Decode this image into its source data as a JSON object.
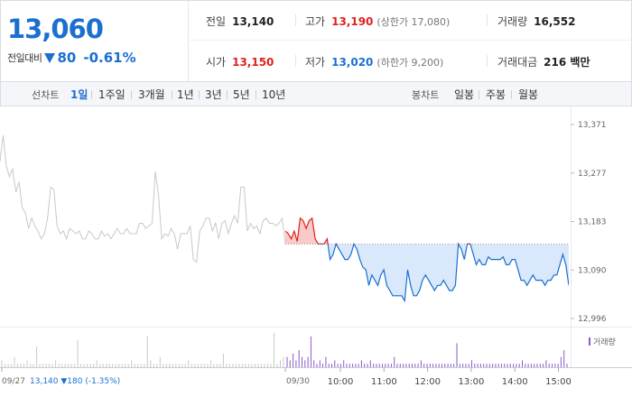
{
  "quote": {
    "price": "13,060",
    "change_label": "전일대비",
    "change_value": "80",
    "change_pct": "-0.61%"
  },
  "stats": {
    "prev_close": {
      "label": "전일",
      "value": "13,140"
    },
    "high": {
      "label": "고가",
      "value": "13,190",
      "limit_label": "(상한가 17,080)"
    },
    "volume": {
      "label": "거래량",
      "value": "16,552"
    },
    "open": {
      "label": "시가",
      "value": "13,150"
    },
    "low": {
      "label": "저가",
      "value": "13,020",
      "limit_label": "(하한가 9,200)"
    },
    "trade_value": {
      "label": "거래대금",
      "value": "216 백만"
    }
  },
  "line_tabs": {
    "label": "선차트",
    "items": [
      "1일",
      "1주일",
      "3개월",
      "1년",
      "3년",
      "5년",
      "10년"
    ],
    "active": "1일"
  },
  "candle_tabs": {
    "label": "봉차트",
    "items": [
      "일봉",
      "주봉",
      "월봉"
    ]
  },
  "chart_data": {
    "type": "line",
    "y_ticks": [
      "13,371",
      "13,277",
      "13,183",
      "13,090",
      "12,996"
    ],
    "ylim": [
      12996,
      13371
    ],
    "prev_close": 13140,
    "prev_day_label": "09/27",
    "prev_day_summary": "13,140 ▼180 (-1.35%)",
    "day_label": "09/30",
    "time_ticks": [
      "10:00",
      "11:00",
      "12:00",
      "13:00",
      "14:00",
      "15:00"
    ],
    "volume_legend": "거래량",
    "prev_day_series": [
      13300,
      13350,
      13290,
      13270,
      13285,
      13240,
      13260,
      13210,
      13200,
      13170,
      13190,
      13175,
      13165,
      13150,
      13160,
      13190,
      13250,
      13245,
      13175,
      13160,
      13165,
      13150,
      13170,
      13165,
      13160,
      13165,
      13150,
      13150,
      13165,
      13160,
      13150,
      13150,
      13165,
      13155,
      13160,
      13150,
      13160,
      13170,
      13160,
      13160,
      13170,
      13160,
      13160,
      13160,
      13180,
      13180,
      13170,
      13175,
      13180,
      13280,
      13235,
      13150,
      13160,
      13155,
      13170,
      13160,
      13130,
      13160,
      13160,
      13160,
      13175,
      13110,
      13105,
      13165,
      13175,
      13190,
      13190,
      13165,
      13180,
      13150,
      13180,
      13185,
      13160,
      13180,
      13195,
      13180,
      13250,
      13250,
      13165,
      13180,
      13170,
      13175,
      13160,
      13185,
      13190,
      13180,
      13180,
      13175,
      13180,
      13190,
      13140
    ],
    "today_series": [
      13165,
      13160,
      13150,
      13165,
      13145,
      13190,
      13185,
      13170,
      13185,
      13190,
      13150,
      13140,
      13140,
      13140,
      13150,
      13110,
      13120,
      13140,
      13130,
      13120,
      13110,
      13110,
      13120,
      13140,
      13130,
      13110,
      13095,
      13090,
      13060,
      13080,
      13070,
      13060,
      13080,
      13090,
      13060,
      13050,
      13040,
      13040,
      13040,
      13040,
      13030,
      13090,
      13060,
      13040,
      13040,
      13050,
      13070,
      13080,
      13070,
      13060,
      13050,
      13060,
      13060,
      13070,
      13060,
      13050,
      13050,
      13060,
      13140,
      13130,
      13110,
      13140,
      13140,
      13120,
      13100,
      13110,
      13100,
      13100,
      13115,
      13110,
      13110,
      13110,
      13110,
      13115,
      13100,
      13100,
      13110,
      13110,
      13090,
      13070,
      13070,
      13060,
      13070,
      13080,
      13070,
      13070,
      13070,
      13060,
      13070,
      13070,
      13080,
      13080,
      13100,
      13120,
      13100,
      13060
    ],
    "prev_day_volume": [
      2,
      1,
      1,
      1,
      3,
      1,
      1,
      1,
      2,
      1,
      1,
      6,
      1,
      1,
      1,
      1,
      1,
      2,
      1,
      1,
      1,
      1,
      1,
      1,
      8,
      1,
      1,
      1,
      1,
      1,
      2,
      1,
      1,
      1,
      1,
      1,
      1,
      1,
      1,
      1,
      1,
      2,
      1,
      1,
      1,
      1,
      9,
      2,
      1,
      1,
      3,
      1,
      1,
      1,
      1,
      1,
      1,
      1,
      1,
      2,
      1,
      1,
      1,
      1,
      1,
      1,
      2,
      1,
      1,
      1,
      4,
      1,
      1,
      1,
      1,
      1,
      1,
      1,
      1,
      1,
      1,
      1,
      1,
      1,
      1,
      1,
      10,
      1,
      2,
      3
    ],
    "today_volume": [
      3,
      2,
      4,
      2,
      5,
      3,
      2,
      3,
      9,
      2,
      1,
      2,
      1,
      3,
      1,
      1,
      2,
      1,
      1,
      2,
      1,
      1,
      1,
      1,
      1,
      2,
      1,
      1,
      2,
      1,
      1,
      1,
      1,
      1,
      1,
      1,
      3,
      1,
      1,
      1,
      1,
      1,
      1,
      1,
      1,
      2,
      1,
      1,
      1,
      1,
      1,
      1,
      1,
      1,
      1,
      1,
      1,
      7,
      1,
      1,
      1,
      1,
      2,
      1,
      1,
      1,
      1,
      1,
      1,
      1,
      1,
      1,
      1,
      1,
      1,
      1,
      1,
      1,
      1,
      2,
      1,
      1,
      1,
      1,
      1,
      1,
      1,
      2,
      1,
      1,
      1,
      1,
      3,
      5,
      1
    ],
    "colors": {
      "prev_day_line": "#c8c8c8",
      "today_line": "#1a6fd1",
      "today_fill": "#d9e8fb",
      "above_prev_close": "#e0201e",
      "above_prev_close_fill": "#f8caca",
      "volume_prev": "#c8c8c8",
      "volume_today": "#8a5bc9"
    }
  }
}
